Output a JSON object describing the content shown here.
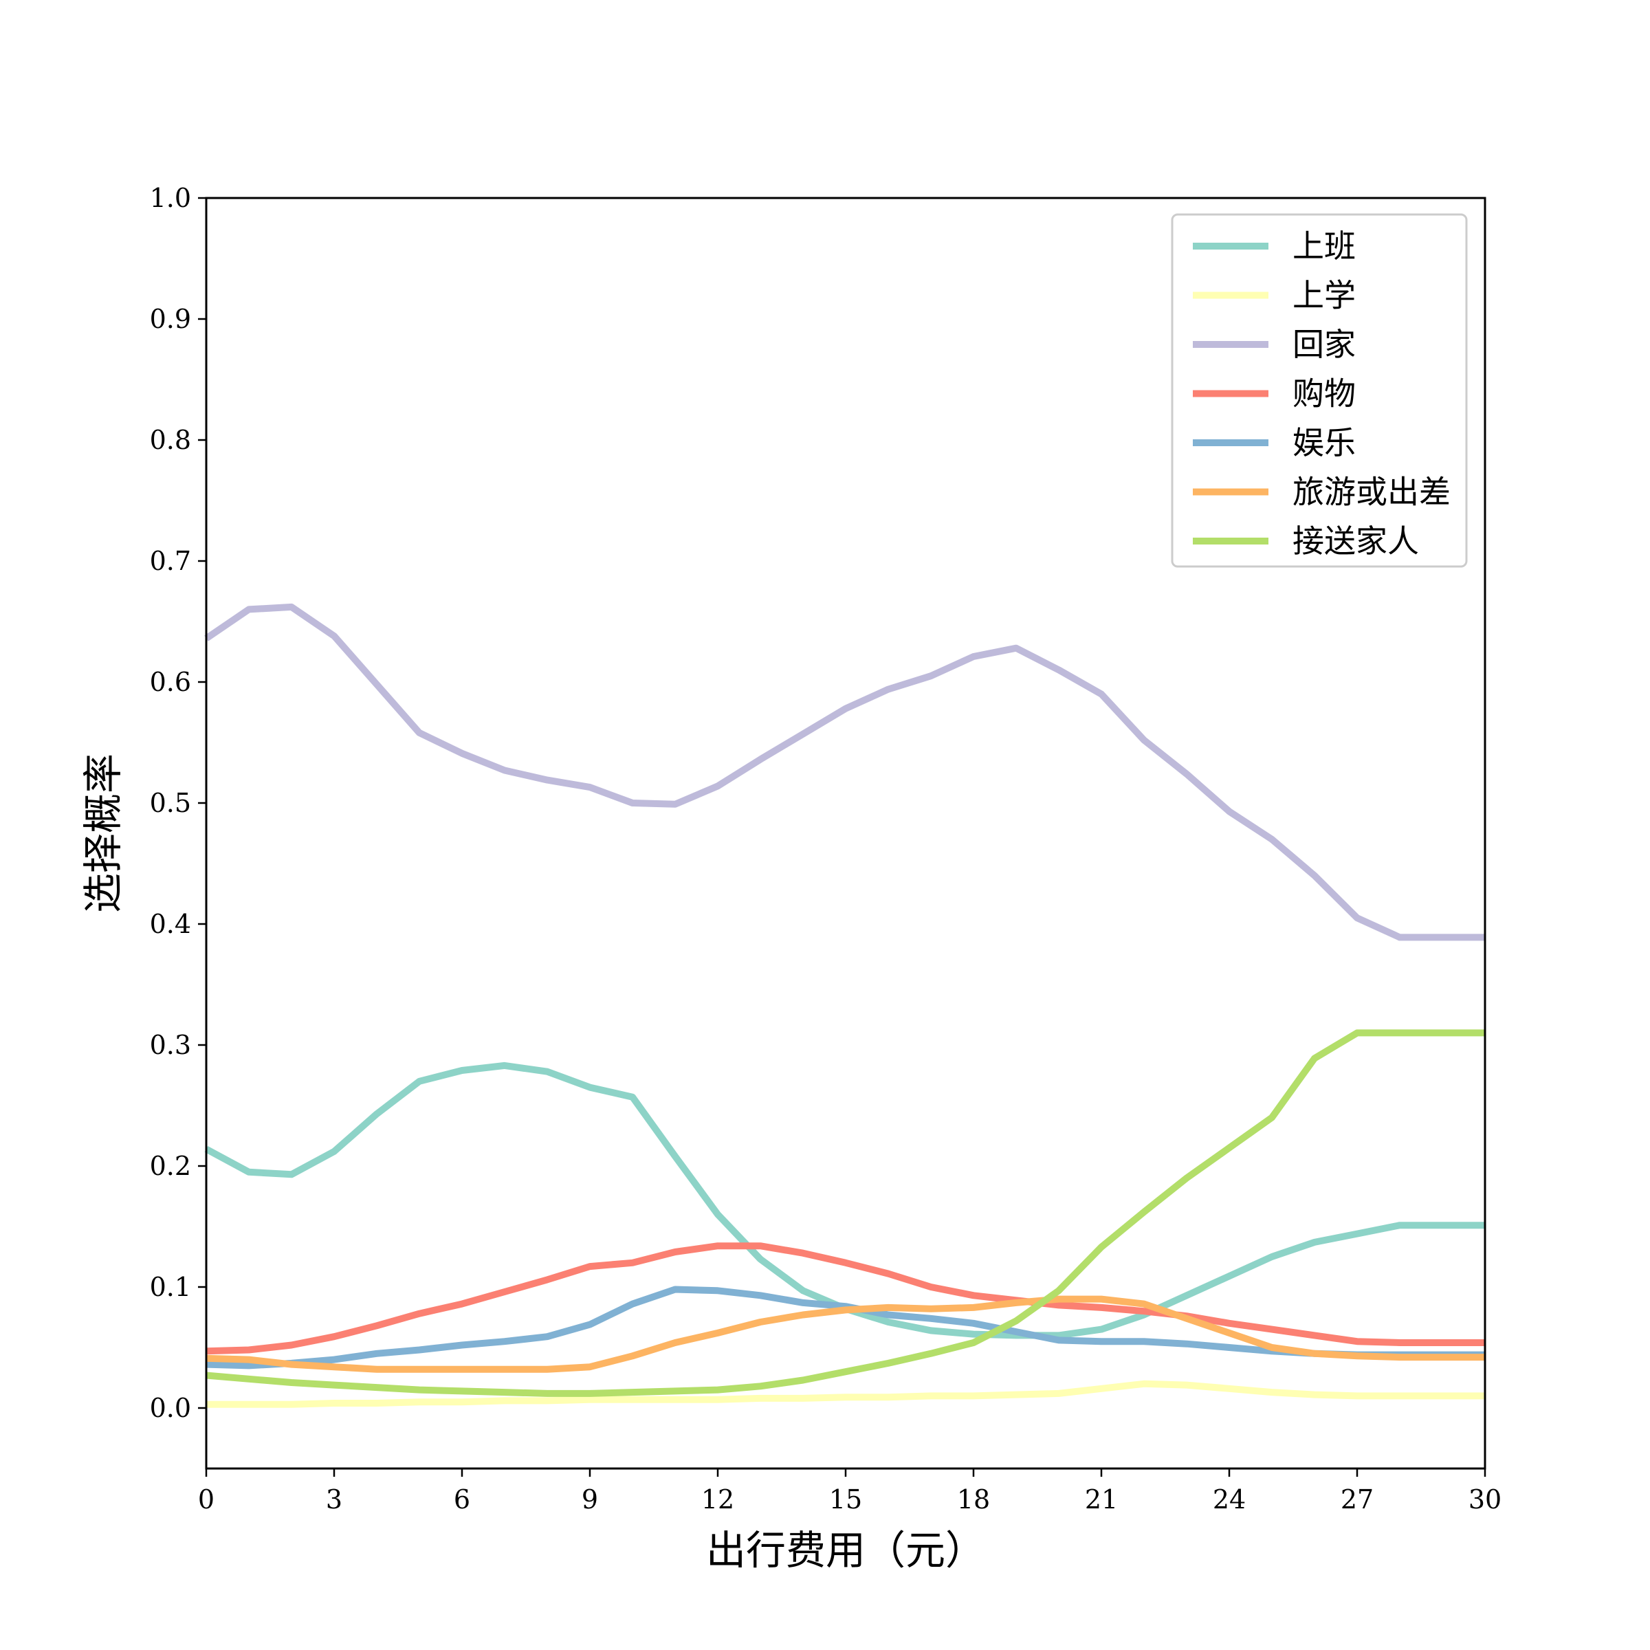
{
  "chart_data": {
    "type": "line",
    "xlabel": "出行费用（元）",
    "ylabel": "选择概率",
    "xlim": [
      0,
      30
    ],
    "ylim": [
      -0.05,
      1.0
    ],
    "xticks": [
      "0",
      "3",
      "6",
      "9",
      "12",
      "15",
      "18",
      "21",
      "24",
      "27",
      "30"
    ],
    "yticks": [
      "0.0",
      "0.1",
      "0.2",
      "0.3",
      "0.4",
      "0.5",
      "0.6",
      "0.7",
      "0.8",
      "0.9",
      "1.0"
    ],
    "grid": false,
    "legend_position": "top-right",
    "x": [
      0,
      1,
      2,
      3,
      4,
      5,
      6,
      7,
      8,
      9,
      10,
      11,
      12,
      13,
      14,
      15,
      16,
      17,
      18,
      19,
      20,
      21,
      22,
      23,
      24,
      25,
      26,
      27,
      28,
      29,
      30
    ],
    "series": [
      {
        "name": "上班",
        "color": "#8dd3c7",
        "values": [
          0.214,
          0.195,
          0.193,
          0.212,
          0.243,
          0.27,
          0.279,
          0.283,
          0.278,
          0.265,
          0.257,
          0.208,
          0.16,
          0.123,
          0.097,
          0.082,
          0.071,
          0.064,
          0.061,
          0.06,
          0.06,
          0.065,
          0.077,
          0.093,
          0.109,
          0.125,
          0.137,
          0.144,
          0.151,
          0.151,
          0.151
        ]
      },
      {
        "name": "上学",
        "color": "#ffffb3",
        "values": [
          0.003,
          0.003,
          0.003,
          0.004,
          0.004,
          0.005,
          0.005,
          0.006,
          0.006,
          0.007,
          0.007,
          0.007,
          0.007,
          0.008,
          0.008,
          0.009,
          0.009,
          0.01,
          0.01,
          0.011,
          0.012,
          0.016,
          0.02,
          0.019,
          0.016,
          0.013,
          0.011,
          0.01,
          0.01,
          0.01,
          0.01
        ]
      },
      {
        "name": "回家",
        "color": "#bebada",
        "values": [
          0.636,
          0.66,
          0.662,
          0.638,
          0.598,
          0.558,
          0.541,
          0.527,
          0.519,
          0.513,
          0.5,
          0.499,
          0.514,
          0.536,
          0.557,
          0.578,
          0.594,
          0.605,
          0.621,
          0.628,
          0.61,
          0.59,
          0.552,
          0.524,
          0.493,
          0.47,
          0.44,
          0.405,
          0.389,
          0.389,
          0.389
        ]
      },
      {
        "name": "购物",
        "color": "#fb8072",
        "values": [
          0.047,
          0.048,
          0.052,
          0.059,
          0.068,
          0.078,
          0.086,
          0.096,
          0.106,
          0.117,
          0.12,
          0.129,
          0.134,
          0.134,
          0.128,
          0.12,
          0.111,
          0.1,
          0.093,
          0.089,
          0.085,
          0.083,
          0.08,
          0.076,
          0.07,
          0.065,
          0.06,
          0.055,
          0.054,
          0.054,
          0.054
        ]
      },
      {
        "name": "娱乐",
        "color": "#80b1d3",
        "values": [
          0.036,
          0.035,
          0.037,
          0.04,
          0.045,
          0.048,
          0.052,
          0.055,
          0.059,
          0.069,
          0.086,
          0.098,
          0.097,
          0.093,
          0.087,
          0.084,
          0.077,
          0.074,
          0.07,
          0.063,
          0.056,
          0.055,
          0.055,
          0.053,
          0.05,
          0.047,
          0.045,
          0.044,
          0.044,
          0.044,
          0.044
        ]
      },
      {
        "name": "旅游或出差",
        "color": "#fdb462",
        "values": [
          0.041,
          0.04,
          0.036,
          0.034,
          0.032,
          0.032,
          0.032,
          0.032,
          0.032,
          0.034,
          0.043,
          0.054,
          0.062,
          0.071,
          0.077,
          0.081,
          0.083,
          0.082,
          0.083,
          0.087,
          0.09,
          0.09,
          0.086,
          0.074,
          0.062,
          0.05,
          0.045,
          0.043,
          0.042,
          0.042,
          0.042
        ]
      },
      {
        "name": "接送家人",
        "color": "#b3de69",
        "values": [
          0.027,
          0.024,
          0.021,
          0.019,
          0.017,
          0.015,
          0.014,
          0.013,
          0.012,
          0.012,
          0.013,
          0.014,
          0.015,
          0.018,
          0.023,
          0.03,
          0.037,
          0.045,
          0.054,
          0.072,
          0.097,
          0.133,
          0.162,
          0.19,
          0.215,
          0.24,
          0.289,
          0.31,
          0.31,
          0.31,
          0.31
        ]
      }
    ]
  }
}
